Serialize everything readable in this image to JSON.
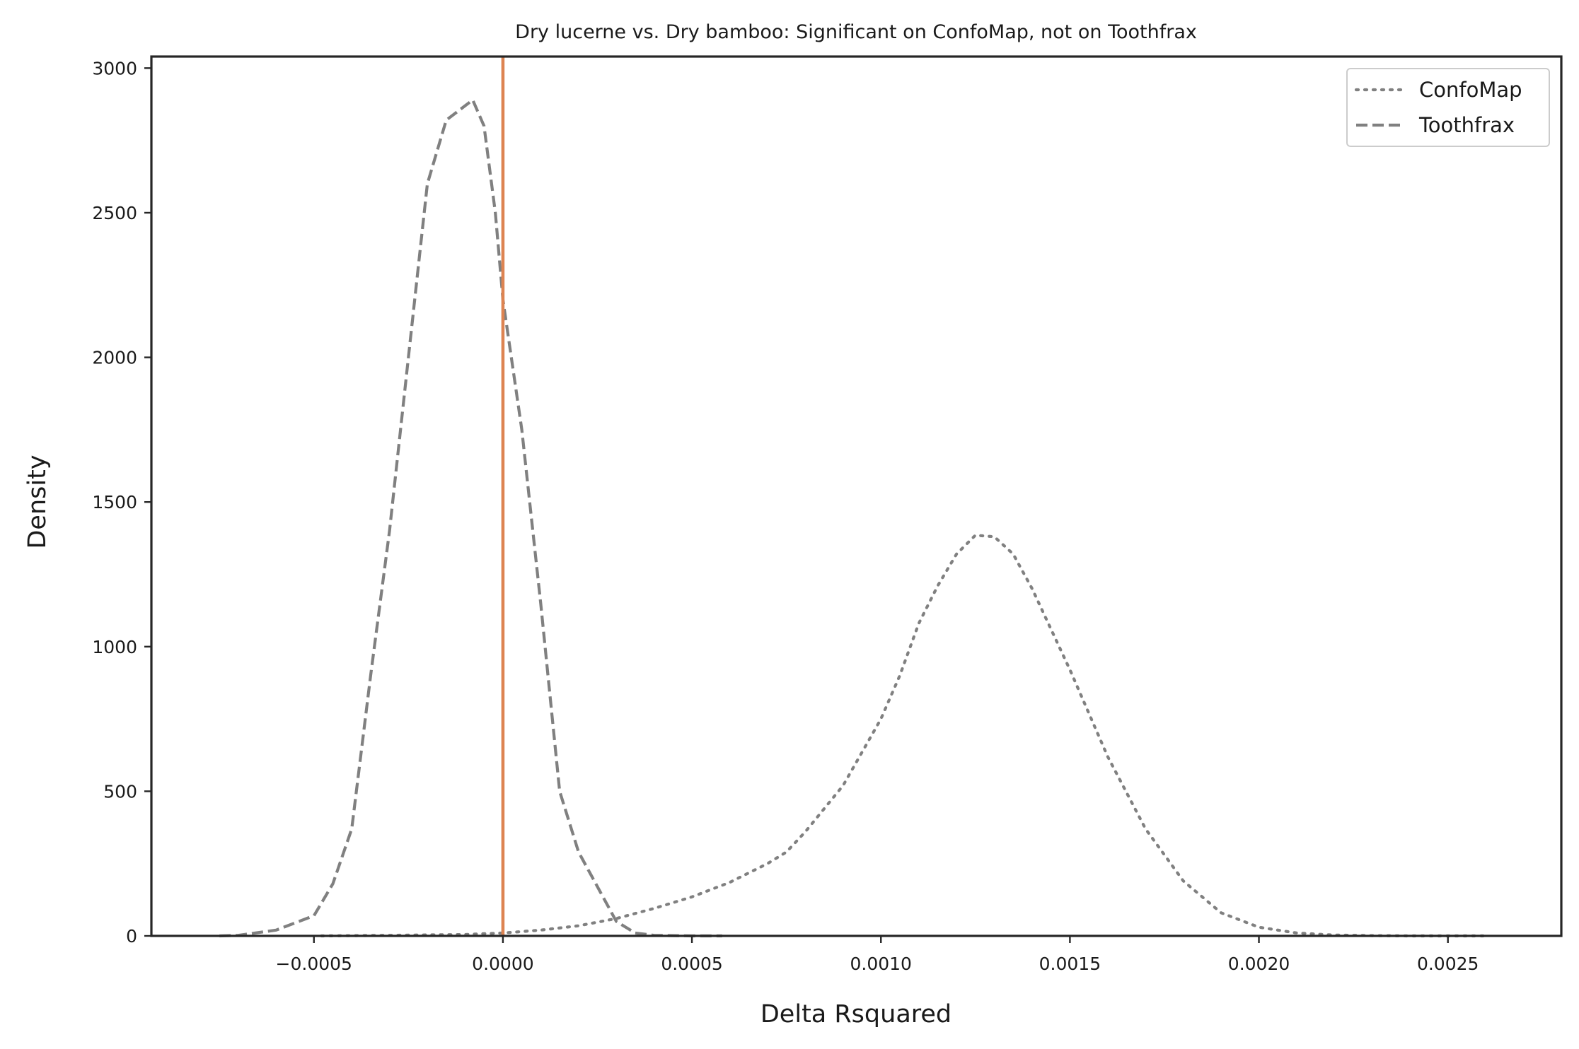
{
  "chart_data": {
    "type": "line",
    "title": "Dry lucerne vs. Dry bamboo: Significant on ConfoMap, not on Toothfrax",
    "xlabel": "Delta Rsquared",
    "ylabel": "Density",
    "xlim": [
      -0.00093,
      0.0028
    ],
    "ylim": [
      0,
      3040
    ],
    "xticks": [
      -0.0005,
      0.0,
      0.0005,
      0.001,
      0.0015,
      0.002,
      0.0025
    ],
    "xtick_labels": [
      "−0.0005",
      "0.0000",
      "0.0005",
      "0.0010",
      "0.0015",
      "0.0020",
      "0.0025"
    ],
    "yticks": [
      0,
      500,
      1000,
      1500,
      2000,
      2500,
      3000
    ],
    "ytick_labels": [
      "0",
      "500",
      "1000",
      "1500",
      "2000",
      "2500",
      "3000"
    ],
    "grid": false,
    "legend_position": "top-right",
    "reference_line": {
      "x": 0.0,
      "color": "#dd8452"
    },
    "series": [
      {
        "name": "ConfoMap",
        "style": "dotted",
        "color": "#808080",
        "x": [
          -0.00048,
          -0.0003,
          -0.0001,
          0.0,
          0.0001,
          0.0002,
          0.0003,
          0.0004,
          0.0005,
          0.0006,
          0.0007,
          0.00075,
          0.0008,
          0.0009,
          0.001,
          0.00105,
          0.0011,
          0.00115,
          0.0012,
          0.00125,
          0.0013,
          0.00135,
          0.0014,
          0.0015,
          0.0016,
          0.0017,
          0.0018,
          0.0019,
          0.002,
          0.0021,
          0.0022,
          0.0023,
          0.0024,
          0.0025,
          0.0026
        ],
        "y": [
          0,
          2,
          5,
          10,
          20,
          35,
          60,
          95,
          135,
          185,
          250,
          290,
          360,
          520,
          750,
          900,
          1080,
          1210,
          1320,
          1385,
          1380,
          1320,
          1200,
          920,
          620,
          370,
          190,
          80,
          30,
          10,
          3,
          1,
          0,
          0,
          0
        ]
      },
      {
        "name": "Toothfrax",
        "style": "dashed",
        "color": "#808080",
        "x": [
          -0.00075,
          -0.0007,
          -0.0006,
          -0.0005,
          -0.00045,
          -0.0004,
          -0.00035,
          -0.0003,
          -0.00025,
          -0.0002,
          -0.00015,
          -0.0001,
          -8e-05,
          -5e-05,
          -2e-05,
          0.0,
          5e-05,
          0.0001,
          0.00015,
          0.0002,
          0.00025,
          0.0003,
          0.00035,
          0.0004,
          0.0005,
          0.00058
        ],
        "y": [
          0,
          2,
          20,
          70,
          180,
          370,
          900,
          1400,
          2000,
          2600,
          2820,
          2870,
          2890,
          2800,
          2500,
          2200,
          1750,
          1150,
          500,
          290,
          170,
          50,
          10,
          2,
          0,
          0
        ]
      }
    ]
  }
}
